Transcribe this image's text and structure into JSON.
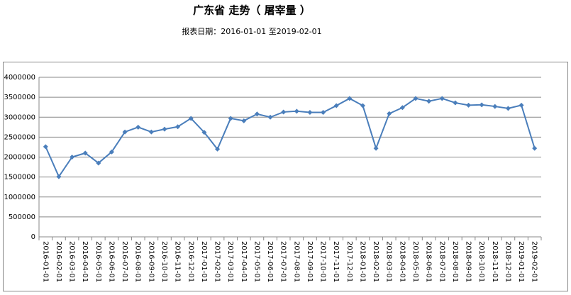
{
  "chart_data": {
    "type": "line",
    "title": "广东省  走势（ 屠宰量 ）",
    "subtitle": "报表日期：2016-01-01 至2019-02-01",
    "categories": [
      "2016-01-01",
      "2016-02-01",
      "2016-03-01",
      "2016-04-01",
      "2016-05-01",
      "2016-06-01",
      "2016-07-01",
      "2016-08-01",
      "2016-09-01",
      "2016-10-01",
      "2016-11-01",
      "2016-12-01",
      "2017-01-01",
      "2017-02-01",
      "2017-03-01",
      "2017-04-01",
      "2017-05-01",
      "2017-06-01",
      "2017-07-01",
      "2017-08-01",
      "2017-09-01",
      "2017-10-01",
      "2017-11-01",
      "2017-12-01",
      "2018-01-01",
      "2018-02-01",
      "2018-03-01",
      "2018-04-01",
      "2018-05-01",
      "2018-06-01",
      "2018-07-01",
      "2018-08-01",
      "2018-09-01",
      "2018-10-01",
      "2018-11-01",
      "2018-12-01",
      "2019-01-01",
      "2019-02-01"
    ],
    "values": [
      2260000,
      1510000,
      2000000,
      2100000,
      1850000,
      2130000,
      2630000,
      2750000,
      2630000,
      2700000,
      2760000,
      2970000,
      2620000,
      2200000,
      2970000,
      2910000,
      3080000,
      3000000,
      3130000,
      3150000,
      3120000,
      3120000,
      3290000,
      3470000,
      3290000,
      2220000,
      3090000,
      3240000,
      3470000,
      3400000,
      3470000,
      3360000,
      3300000,
      3310000,
      3270000,
      3220000,
      3300000,
      2220000
    ],
    "color": "#4a7ebb",
    "ylim": [
      0,
      4000000
    ],
    "yticks": [
      0,
      500000,
      1000000,
      1500000,
      2000000,
      2500000,
      3000000,
      3500000,
      4000000
    ],
    "grid": true
  }
}
